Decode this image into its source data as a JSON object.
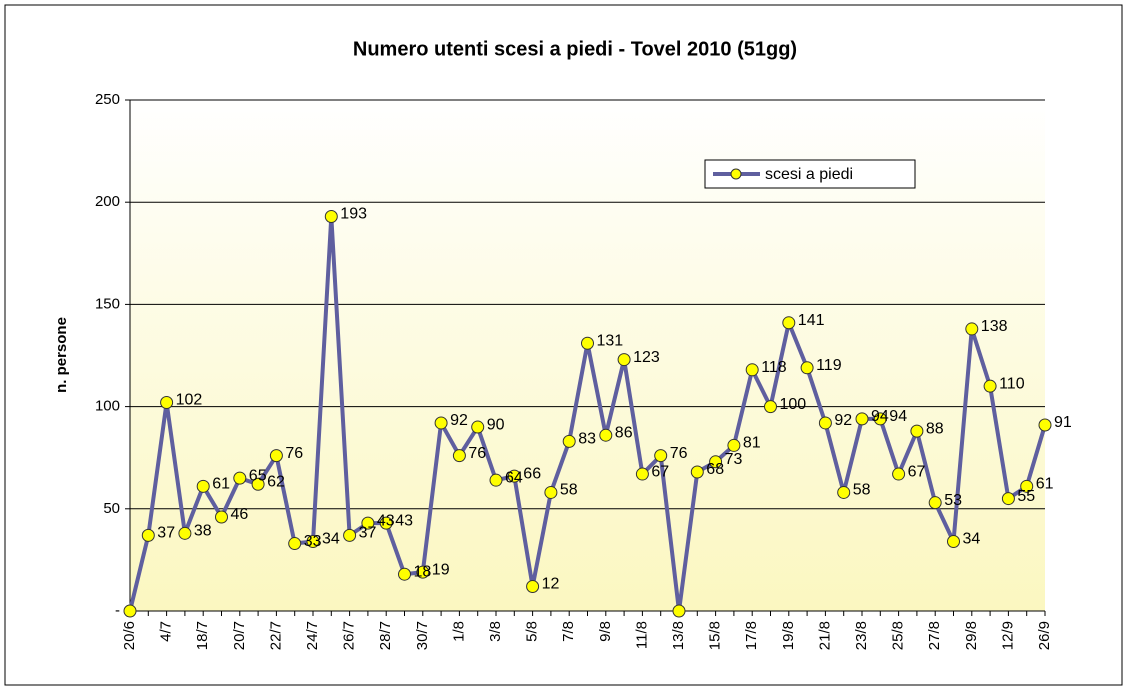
{
  "chart_data": {
    "type": "line",
    "title": "Numero utenti scesi a piedi - Tovel 2010 (51gg)",
    "ylabel": "n. persone",
    "categories": [
      "20/6",
      null,
      "4/7",
      null,
      "18/7",
      null,
      "20/7",
      null,
      "22/7",
      null,
      "24/7",
      null,
      "26/7",
      null,
      "28/7",
      null,
      "30/7",
      null,
      "1/8",
      null,
      "3/8",
      null,
      "5/8",
      null,
      "7/8",
      null,
      "9/8",
      null,
      "11/8",
      null,
      "13/8",
      null,
      "15/8",
      null,
      "17/8",
      null,
      "19/8",
      null,
      "21/8",
      null,
      "23/8",
      null,
      "25/8",
      null,
      "27/8",
      null,
      "29/8",
      null,
      "12/9",
      null,
      "26/9"
    ],
    "series": [
      {
        "name": "scesi a piedi",
        "color": "#5f5f9f",
        "marker_color": "#ffff00",
        "values": [
          0,
          37,
          102,
          38,
          61,
          46,
          65,
          62,
          76,
          33,
          34,
          193,
          37,
          43,
          43,
          18,
          19,
          92,
          76,
          90,
          64,
          66,
          12,
          58,
          83,
          131,
          86,
          123,
          67,
          76,
          0,
          68,
          73,
          81,
          118,
          100,
          141,
          119,
          92,
          58,
          94,
          94,
          67,
          88,
          53,
          34,
          138,
          110,
          55,
          61,
          91
        ],
        "value_labels": [
          null,
          "37",
          "102",
          "38",
          "61",
          "46",
          "65",
          "62",
          "76",
          "33",
          "34",
          "193",
          "37",
          "43",
          "43",
          "18",
          "19",
          "92",
          "76",
          "90",
          "64",
          "66",
          "12",
          "58",
          "83",
          "131",
          "86",
          "123",
          "67",
          "76",
          null,
          "68",
          "73",
          "81",
          "118",
          "100",
          "141",
          "119",
          "92",
          "58",
          "94",
          "94",
          "67",
          "88",
          "53",
          "34",
          "138",
          "110",
          "55",
          "61",
          "91"
        ]
      }
    ],
    "ylim": [
      0,
      250
    ],
    "yticks": [
      {
        "value": 0,
        "label": "-"
      },
      50,
      100,
      150,
      200,
      250
    ],
    "grid": true,
    "legend": "upper right"
  }
}
